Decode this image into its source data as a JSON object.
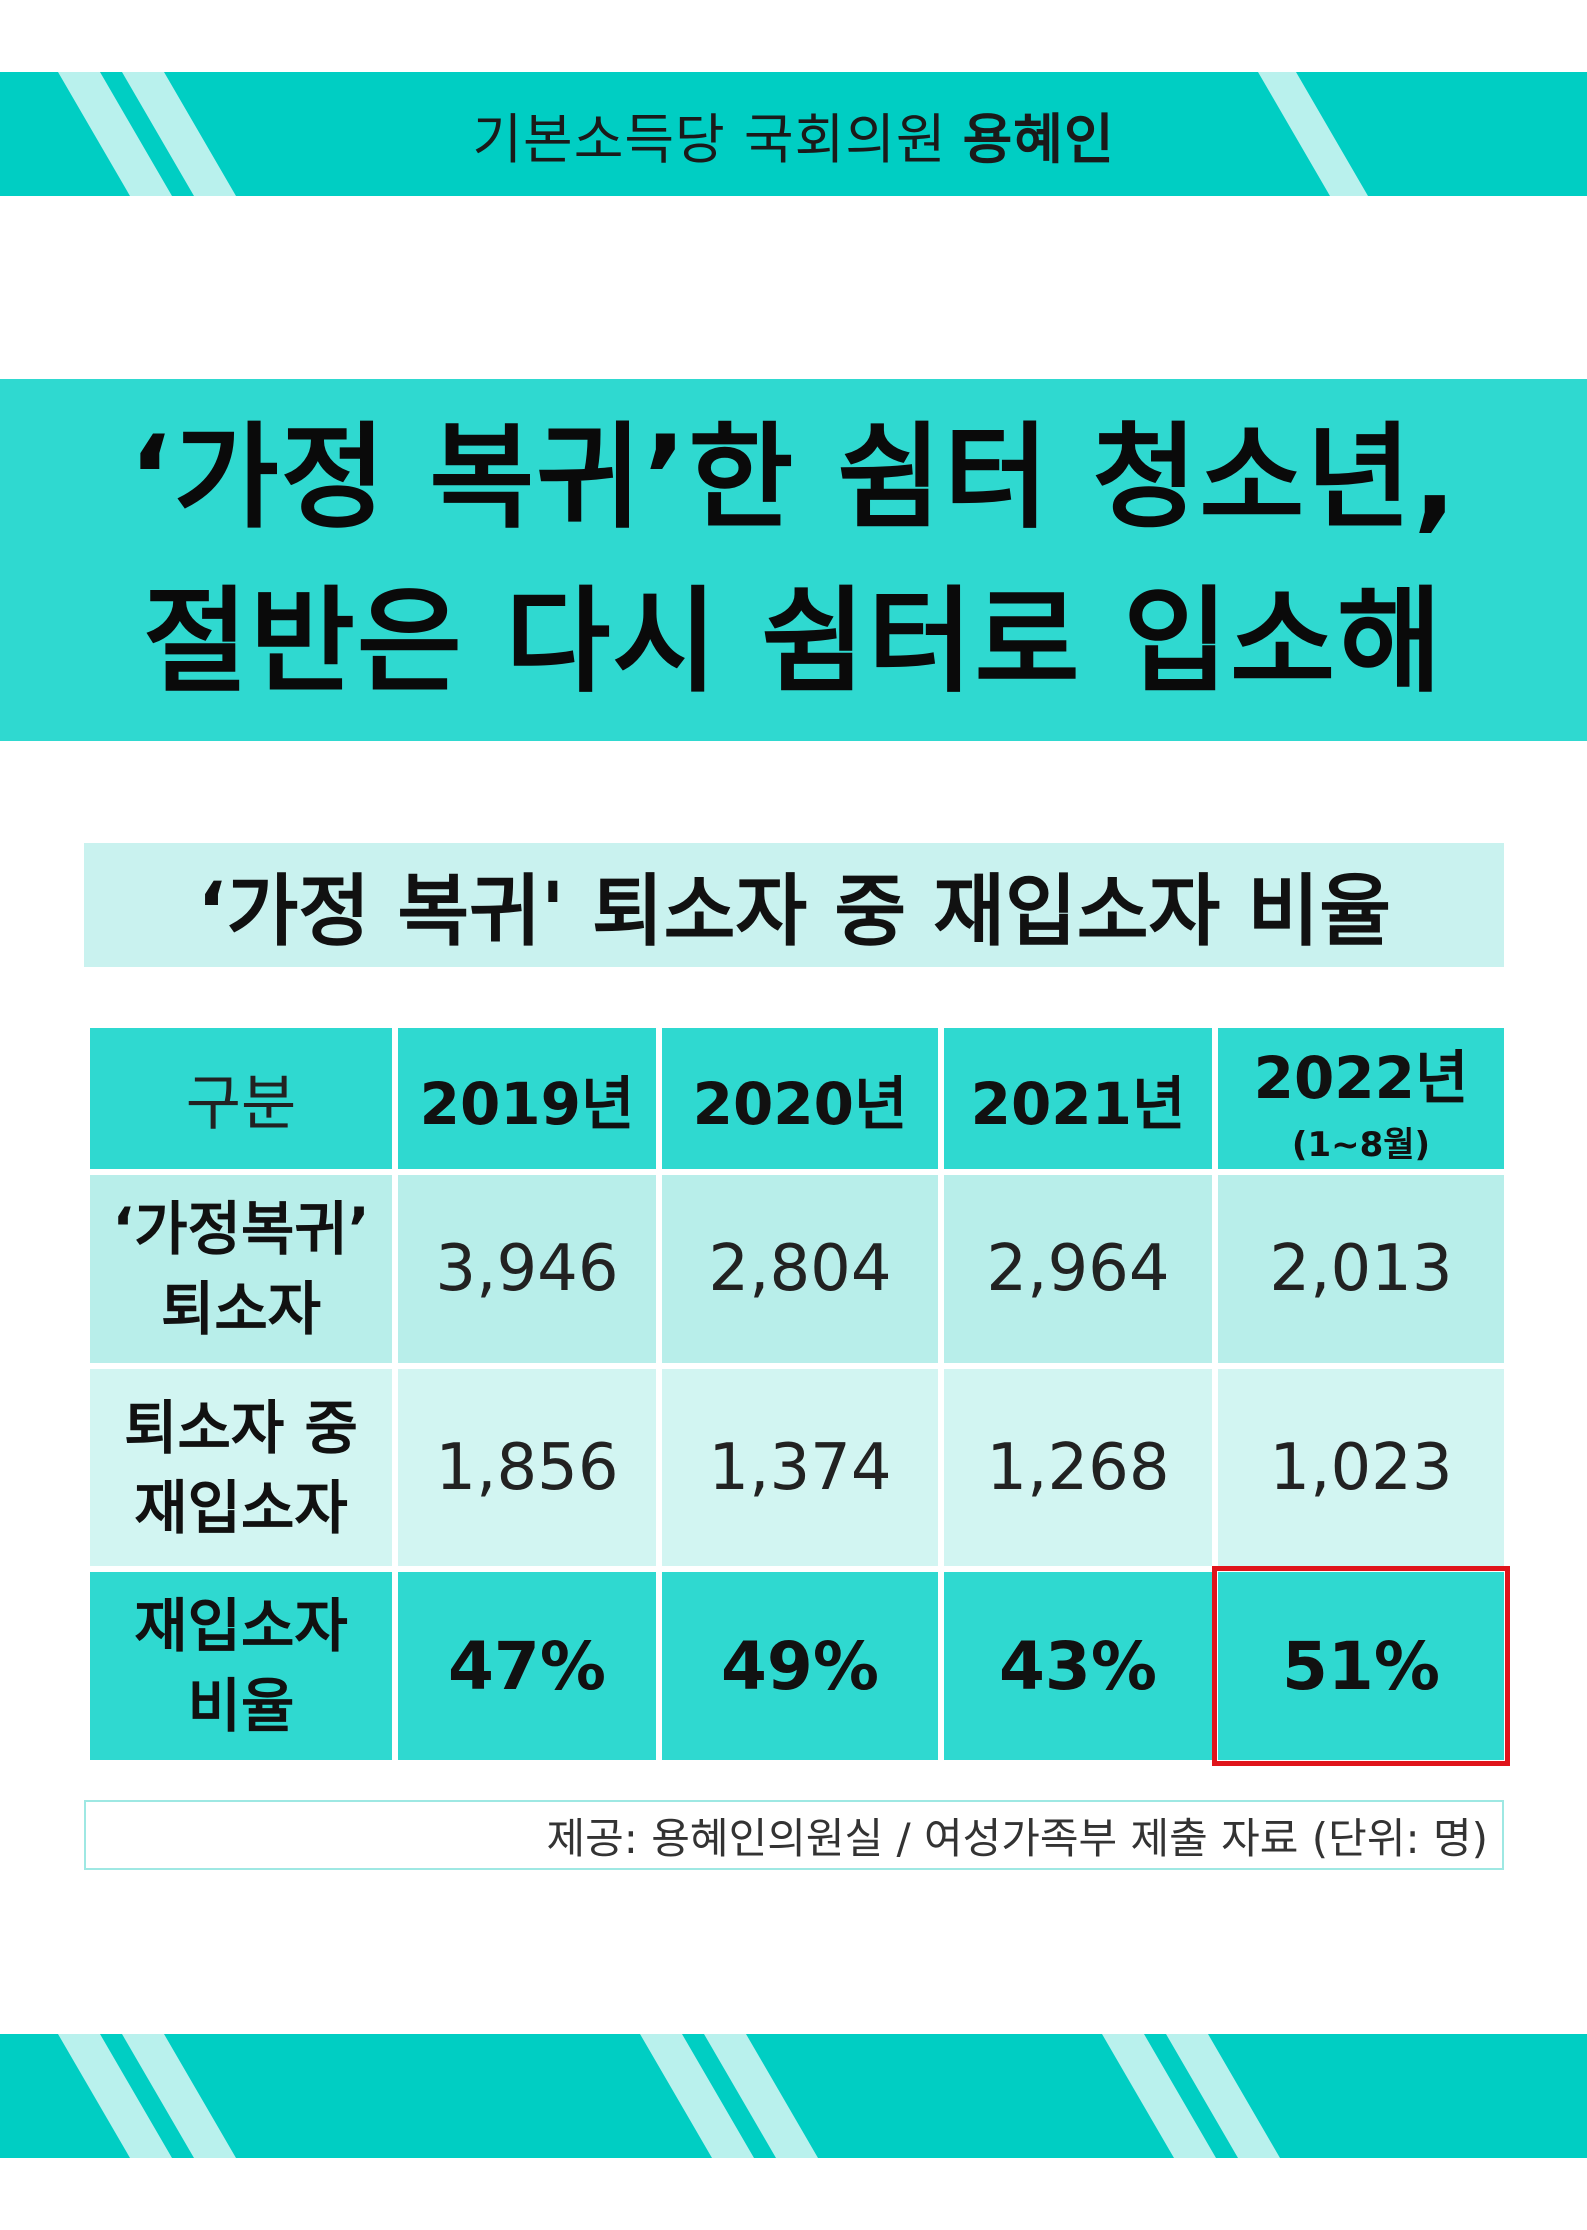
{
  "header": {
    "party_member": "기본소득당 국회의원",
    "name": "용혜인"
  },
  "headline": {
    "line1": "‘가정 복귀’한 쉼터 청소년,",
    "line2": "절반은 다시 쉼터로 입소해"
  },
  "table_title": "‘가정 복귀' 퇴소자 중 재입소자 비율",
  "table": {
    "corner": "구분",
    "columns": [
      {
        "year": "2019년",
        "note": ""
      },
      {
        "year": "2020년",
        "note": ""
      },
      {
        "year": "2021년",
        "note": ""
      },
      {
        "year": "2022년",
        "note": "(1~8월)"
      }
    ],
    "rows": [
      {
        "label_line1": "‘가정복귀’",
        "label_line2": "퇴소자",
        "values": [
          "3,946",
          "2,804",
          "2,964",
          "2,013"
        ]
      },
      {
        "label_line1": "퇴소자 중",
        "label_line2": "재입소자",
        "values": [
          "1,856",
          "1,374",
          "1,268",
          "1,023"
        ]
      },
      {
        "label_line1": "재입소자",
        "label_line2": "비율",
        "values": [
          "47%",
          "49%",
          "43%",
          "51%"
        ]
      }
    ],
    "highlighted_cell": "51%"
  },
  "source_note": "제공: 용혜인의원실 / 여성가족부 제출 자료 (단위: 명)",
  "colors": {
    "band": "#00cec3",
    "headline_bg": "#2fd9d0",
    "subtitle_bg": "#c9f2ef",
    "highlight_border": "#e0141b"
  }
}
